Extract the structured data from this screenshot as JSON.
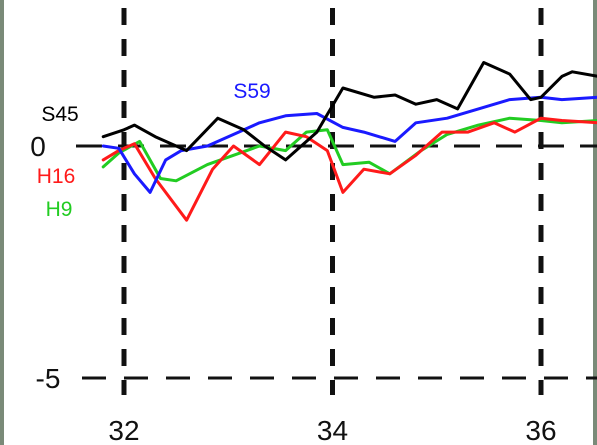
{
  "chart_data": {
    "type": "line",
    "title": "",
    "xlabel": "",
    "ylabel": "",
    "xlim": [
      30.0,
      36.55
    ],
    "ylim": [
      -5.6,
      1.45
    ],
    "x_ticks": [
      {
        "value": 32,
        "label": "32"
      },
      {
        "value": 34,
        "label": "34"
      },
      {
        "value": 36,
        "label": "36"
      }
    ],
    "y_ticks": [
      {
        "value": 0,
        "label": "0"
      },
      {
        "value": -5,
        "label": "-5"
      }
    ],
    "grid": {
      "vertical_dashed_at": [
        32,
        34,
        36
      ],
      "horizontal_dashed_at": [
        0,
        -5
      ]
    },
    "legend": "inline labels at left",
    "series": [
      {
        "name": "S45",
        "color": "#000000",
        "x": [
          31.8,
          32.0,
          32.1,
          32.3,
          32.6,
          32.9,
          33.15,
          33.35,
          33.55,
          33.85,
          34.1,
          34.4,
          34.6,
          34.8,
          35.0,
          35.2,
          35.45,
          35.7,
          35.9,
          36.0,
          36.2,
          36.3,
          36.55
        ],
        "y": [
          0.2,
          0.35,
          0.45,
          0.2,
          -0.1,
          0.6,
          0.35,
          0.0,
          -0.3,
          0.3,
          1.25,
          1.05,
          1.1,
          0.9,
          1.0,
          0.8,
          1.8,
          1.55,
          1.0,
          1.05,
          1.5,
          1.6,
          1.5
        ]
      },
      {
        "name": "S59",
        "color": "#1a1aff",
        "x": [
          31.8,
          31.95,
          32.1,
          32.25,
          32.4,
          32.55,
          32.8,
          33.1,
          33.3,
          33.55,
          33.85,
          34.1,
          34.3,
          34.6,
          34.8,
          35.1,
          35.4,
          35.7,
          36.0,
          36.2,
          36.55
        ],
        "y": [
          0.0,
          -0.05,
          -0.6,
          -1.0,
          -0.3,
          -0.1,
          0.0,
          0.3,
          0.5,
          0.65,
          0.7,
          0.4,
          0.3,
          0.1,
          0.5,
          0.6,
          0.8,
          1.0,
          1.05,
          1.0,
          1.05
        ]
      },
      {
        "name": "H16",
        "color": "#ff1a1a",
        "x": [
          31.8,
          31.95,
          32.1,
          32.3,
          32.6,
          32.85,
          33.05,
          33.3,
          33.55,
          33.75,
          33.95,
          34.1,
          34.3,
          34.55,
          34.8,
          35.05,
          35.3,
          35.55,
          35.75,
          36.0,
          36.2,
          36.55
        ],
        "y": [
          -0.3,
          -0.1,
          0.05,
          -0.7,
          -1.6,
          -0.5,
          0.0,
          -0.4,
          0.3,
          0.2,
          -0.1,
          -1.0,
          -0.5,
          -0.6,
          -0.2,
          0.3,
          0.3,
          0.5,
          0.3,
          0.6,
          0.55,
          0.5
        ]
      },
      {
        "name": "H9",
        "color": "#22cc22",
        "x": [
          31.8,
          31.95,
          32.15,
          32.35,
          32.5,
          32.8,
          33.05,
          33.3,
          33.55,
          33.75,
          33.95,
          34.1,
          34.35,
          34.55,
          34.85,
          35.1,
          35.4,
          35.7,
          36.0,
          36.2,
          36.55
        ],
        "y": [
          -0.45,
          -0.15,
          0.1,
          -0.7,
          -0.75,
          -0.4,
          -0.2,
          0.0,
          -0.1,
          0.3,
          0.35,
          -0.4,
          -0.35,
          -0.6,
          -0.1,
          0.25,
          0.45,
          0.6,
          0.55,
          0.5,
          0.55
        ]
      }
    ]
  }
}
